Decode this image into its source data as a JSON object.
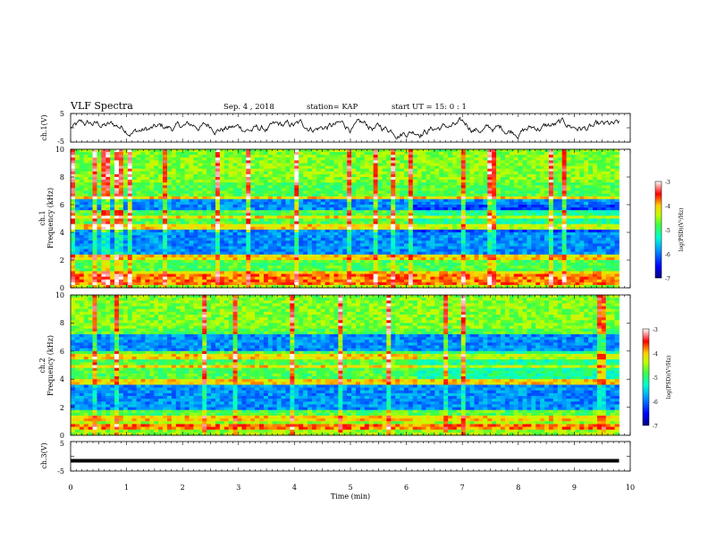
{
  "header": {
    "title": "VLF Spectra",
    "date": "Sep. 4 , 2018",
    "station": "station= KAP",
    "start": "start  UT =   15: 0  : 1"
  },
  "chart_data": [
    {
      "id": "ch1-waveform",
      "type": "line",
      "ylabel": "ch.1(V)",
      "yticks": [
        "5",
        "-5"
      ],
      "xlim": [
        0,
        10
      ],
      "ylim": [
        -5,
        5
      ],
      "data_end_min": 9.8,
      "trace_baseline_v": 0.0,
      "color": "#000000"
    },
    {
      "id": "ch1-spectrogram",
      "type": "heatmap",
      "ylabel": "ch.1\nFrequency (kHz)",
      "ylabel_line1": "ch.1",
      "ylabel_line2": "Frequency (kHz)",
      "ylim": [
        0,
        10
      ],
      "yticks": [
        "0",
        "2",
        "4",
        "6",
        "8",
        "10"
      ],
      "xlim": [
        0,
        10
      ],
      "data_end_min": 9.8,
      "colorbar": {
        "label": "log(PSD)(V²/Hz)",
        "range": [
          -7,
          -3
        ],
        "ticks": [
          "-3",
          "-4",
          "-5",
          "-6",
          "-7"
        ]
      },
      "dark_bands_khz": [
        [
          2.4,
          4.2
        ],
        [
          5.6,
          6.4
        ]
      ],
      "bright_lines_khz": [
        0.3,
        0.6,
        1.0,
        2.2,
        4.4,
        5.1,
        6.5
      ],
      "change_time_min": 6.1
    },
    {
      "id": "ch2-spectrogram",
      "type": "heatmap",
      "ylabel": "ch.2\nFrequency (kHz)",
      "ylabel_line1": "ch.2",
      "ylabel_line2": "Frequency (kHz)",
      "ylim": [
        0,
        10
      ],
      "yticks": [
        "0",
        "2",
        "4",
        "6",
        "8",
        "10"
      ],
      "xlim": [
        0,
        10
      ],
      "data_end_min": 9.8,
      "colorbar": {
        "label": "log(PSD)(V²/Hz)",
        "range": [
          -7,
          -3
        ],
        "ticks": [
          "-3",
          "-4",
          "-5",
          "-6",
          "-7"
        ]
      },
      "dark_bands_khz": [
        [
          1.8,
          3.6
        ],
        [
          6.0,
          7.2
        ]
      ],
      "bright_lines_khz": [
        0.6,
        1.2,
        3.8,
        4.9,
        5.6
      ],
      "change_time_min": 6.2
    },
    {
      "id": "ch3-waveform",
      "type": "line",
      "ylabel": "ch.3(V)",
      "yticks": [
        "5",
        "-5"
      ],
      "xlim": [
        0,
        10
      ],
      "ylim": [
        -5,
        5
      ],
      "data_end_min": 9.8,
      "trace_baseline_v": -1.5,
      "color": "#000000"
    }
  ],
  "time_axis": {
    "label": "Time (min)",
    "ticks": [
      "0",
      "1",
      "2",
      "3",
      "4",
      "5",
      "6",
      "7",
      "8",
      "9",
      "10"
    ]
  }
}
